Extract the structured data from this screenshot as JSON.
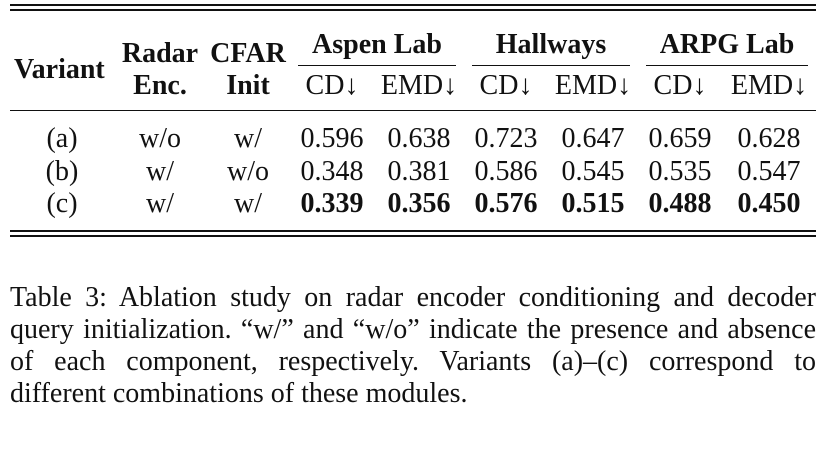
{
  "table": {
    "headers": {
      "variant": "Variant",
      "radar_enc": [
        "Radar",
        "Enc."
      ],
      "cfar_init": [
        "CFAR",
        "Init"
      ],
      "groups": [
        "Aspen Lab",
        "Hallways",
        "ARPG Lab"
      ],
      "metrics": [
        "CD↓",
        "EMD↓",
        "CD↓",
        "EMD↓",
        "CD↓",
        "EMD↓"
      ]
    },
    "rows": [
      {
        "variant": "(a)",
        "radar_enc": "w/o",
        "cfar_init": "w/",
        "values": [
          "0.596",
          "0.638",
          "0.723",
          "0.647",
          "0.659",
          "0.628"
        ]
      },
      {
        "variant": "(b)",
        "radar_enc": "w/",
        "cfar_init": "w/o",
        "values": [
          "0.348",
          "0.381",
          "0.586",
          "0.545",
          "0.535",
          "0.547"
        ]
      },
      {
        "variant": "(c)",
        "radar_enc": "w/",
        "cfar_init": "w/",
        "values": [
          "0.339",
          "0.356",
          "0.576",
          "0.515",
          "0.488",
          "0.450"
        ]
      }
    ]
  },
  "caption": "Table 3: Ablation study on radar encoder conditioning and decoder query initialization. “w/” and “w/o” indicate the presence and absence of each component, respectively. Variants (a)–(c) correspond to different combinations of these modules."
}
